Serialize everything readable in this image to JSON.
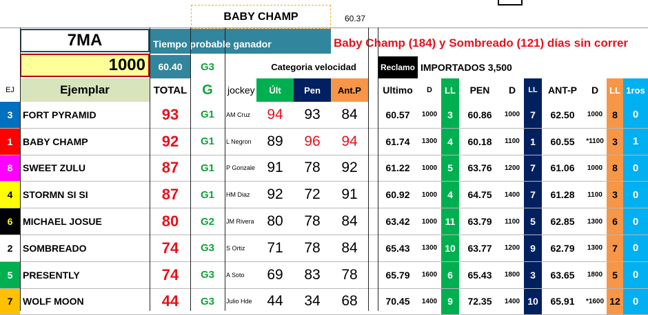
{
  "top": {
    "name_box": "BABY CHAMP",
    "top_value": "60.37",
    "race_label": "7MA",
    "distance": "1000",
    "header_band": "Tiempo probable ganador",
    "probable_time": "60.40",
    "probable_grade": "G3",
    "note": "Baby Champ (184) y Sombreado (121) días sin correr",
    "speed_category_label": "Categoria velocidad",
    "reclamo_label": "Reclamo",
    "importados_label": "IMPORTADOS 3,500"
  },
  "headers": {
    "ej": "EJ",
    "ejemplar": "Ejemplar",
    "total": "TOTAL",
    "g": "G",
    "jockey": "jockey",
    "ult": "Últ",
    "pen": "Pen",
    "antp": "Ant.P",
    "ultimo": "Ultimo",
    "d1": "D",
    "ll1": "LL",
    "pen2": "PEN",
    "d2": "D",
    "ll2": "LL",
    "antp2": "ANT-P",
    "d3": "D",
    "ll3": "LL",
    "firsts": "1ros"
  },
  "colors": {
    "teal": "#31859c",
    "olive": "#d8e4bc",
    "yellow": "#ffff99",
    "green": "#00b050",
    "navy": "#002060",
    "orange": "#f79646",
    "sky": "#00b0f0",
    "red_text": "#e8101a",
    "green_text": "#0fa336"
  },
  "rows": [
    {
      "ej": "3",
      "ej_bg": "#0070c0",
      "ej_color": "#ffffff",
      "name": "FORT PYRAMID",
      "total": "93",
      "grade": "G1",
      "jockey": "AM Cruz",
      "ult": "94",
      "ult_red": true,
      "pen": "93",
      "pen_red": false,
      "antp": "84",
      "antp_red": false,
      "ultimo": "60.57",
      "d1": "1000",
      "ll1": "3",
      "pen2": "60.86",
      "d2": "1000",
      "ll2": "7",
      "antp2": "62.50",
      "d3": "1000",
      "ll3": "8",
      "firsts": "0"
    },
    {
      "ej": "1",
      "ej_bg": "#ff0000",
      "ej_color": "#ffffff",
      "name": "BABY CHAMP",
      "total": "92",
      "grade": "G1",
      "jockey": "L Negron",
      "ult": "89",
      "ult_red": false,
      "pen": "96",
      "pen_red": true,
      "antp": "94",
      "antp_red": true,
      "ultimo": "61.74",
      "d1": "1300",
      "ll1": "4",
      "pen2": "60.18",
      "d2": "1100",
      "ll2": "1",
      "antp2": "60.55",
      "d3": "*1100",
      "ll3": "3",
      "firsts": "1"
    },
    {
      "ej": "8",
      "ej_bg": "#ff00ff",
      "ej_color": "#ffffff",
      "name": "SWEET ZULU",
      "total": "87",
      "grade": "G1",
      "jockey": "P Gonzale",
      "ult": "91",
      "ult_red": false,
      "pen": "78",
      "pen_red": false,
      "antp": "92",
      "antp_red": false,
      "ultimo": "61.22",
      "d1": "1000",
      "ll1": "5",
      "pen2": "63.76",
      "d2": "1200",
      "ll2": "7",
      "antp2": "61.06",
      "d3": "1000",
      "ll3": "8",
      "firsts": "0"
    },
    {
      "ej": "4",
      "ej_bg": "#ffff00",
      "ej_color": "#000000",
      "name": "STORMN SI SI",
      "total": "87",
      "grade": "G1",
      "jockey": "HM Diaz",
      "ult": "92",
      "ult_red": false,
      "pen": "72",
      "pen_red": false,
      "antp": "91",
      "antp_red": false,
      "ultimo": "60.92",
      "d1": "1000",
      "ll1": "4",
      "pen2": "64.75",
      "d2": "1400",
      "ll2": "7",
      "antp2": "61.28",
      "d3": "1100",
      "ll3": "3",
      "firsts": "0"
    },
    {
      "ej": "6",
      "ej_bg": "#000000",
      "ej_color": "#ffff00",
      "name": "MICHAEL JOSUE",
      "total": "80",
      "grade": "G2",
      "jockey": "JM Rivera",
      "ult": "80",
      "ult_red": false,
      "pen": "78",
      "pen_red": false,
      "antp": "84",
      "antp_red": false,
      "ultimo": "63.42",
      "d1": "1000",
      "ll1": "11",
      "pen2": "63.79",
      "d2": "1100",
      "ll2": "5",
      "antp2": "62.85",
      "d3": "1300",
      "ll3": "6",
      "firsts": "0"
    },
    {
      "ej": "2",
      "ej_bg": "#ffffff",
      "ej_color": "#000000",
      "name": "SOMBREADO",
      "total": "74",
      "grade": "G3",
      "jockey": "S Ortiz",
      "ult": "71",
      "ult_red": false,
      "pen": "78",
      "pen_red": false,
      "antp": "84",
      "antp_red": false,
      "ultimo": "65.43",
      "d1": "1300",
      "ll1": "10",
      "pen2": "63.77",
      "d2": "1200",
      "ll2": "9",
      "antp2": "62.79",
      "d3": "1300",
      "ll3": "7",
      "firsts": "0"
    },
    {
      "ej": "5",
      "ej_bg": "#00b050",
      "ej_color": "#ffffff",
      "name": "PRESENTLY",
      "total": "74",
      "grade": "G3",
      "jockey": "A Soto",
      "ult": "69",
      "ult_red": false,
      "pen": "83",
      "pen_red": false,
      "antp": "78",
      "antp_red": false,
      "ultimo": "65.79",
      "d1": "1600",
      "ll1": "6",
      "pen2": "65.43",
      "d2": "1800",
      "ll2": "3",
      "antp2": "63.65",
      "d3": "1800",
      "ll3": "5",
      "firsts": "0"
    },
    {
      "ej": "7",
      "ej_bg": "#ffc000",
      "ej_color": "#000000",
      "name": "WOLF MOON",
      "total": "44",
      "grade": "G3",
      "jockey": "Julio Hde",
      "ult": "44",
      "ult_red": false,
      "pen": "34",
      "pen_red": false,
      "antp": "68",
      "antp_red": false,
      "ultimo": "70.45",
      "d1": "1400",
      "ll1": "9",
      "pen2": "72.35",
      "d2": "1400",
      "ll2": "10",
      "antp2": "65.91",
      "d3": "*1600",
      "ll3": "12",
      "firsts": "0"
    }
  ]
}
